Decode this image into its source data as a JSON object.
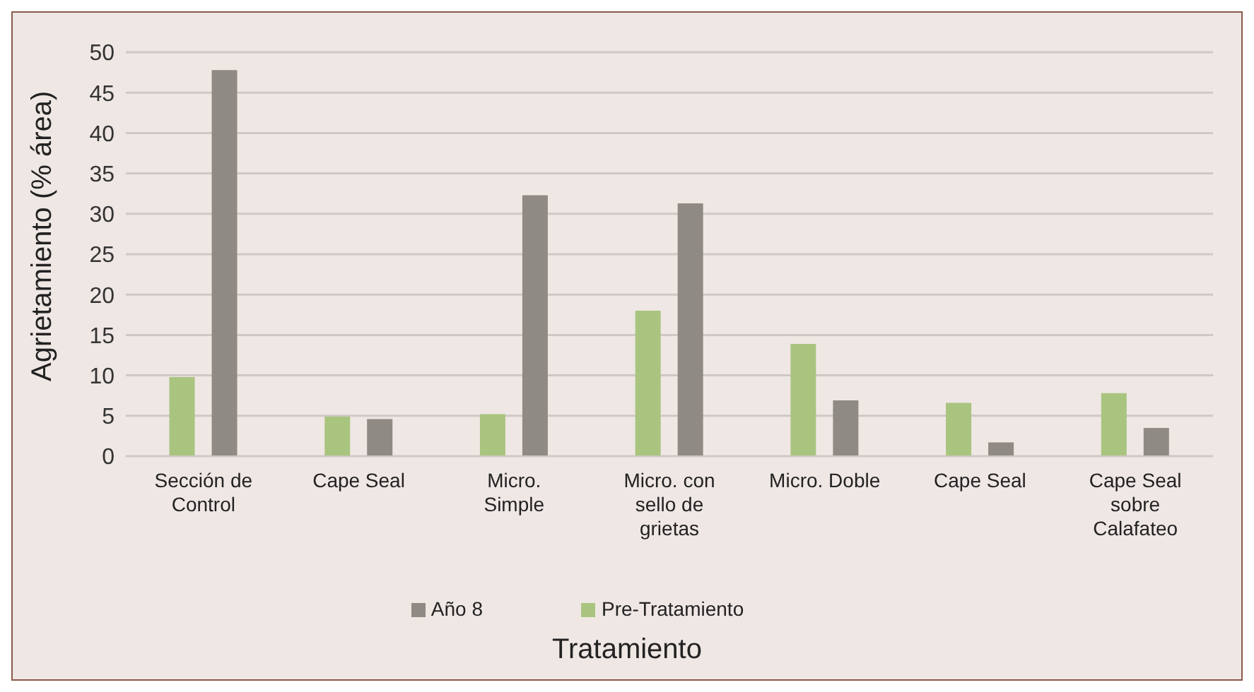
{
  "chart_data": {
    "type": "bar",
    "xlabel": "Tratamiento",
    "ylabel": "Agrietamiento (% área)",
    "categories": [
      "Sección de Control",
      "Cape Seal",
      "Micro. Simple",
      "Micro. con sello de grietas",
      "Micro. Doble",
      "Cape Seal",
      "Cape Seal sobre Calafateo"
    ],
    "series": [
      {
        "name": "Pre-Tratamiento",
        "color": "#a9c47f",
        "values": [
          9.8,
          4.9,
          5.2,
          18.0,
          13.9,
          6.6,
          7.8
        ]
      },
      {
        "name": "Año 8",
        "color": "#8f8a84",
        "values": [
          47.8,
          4.6,
          32.3,
          31.3,
          6.9,
          1.7,
          3.5
        ]
      }
    ],
    "ylim": [
      0,
      50
    ],
    "yticks": [
      0,
      5,
      10,
      15,
      20,
      25,
      30,
      35,
      40,
      45,
      50
    ],
    "grid": "y",
    "legend": "bottom"
  }
}
